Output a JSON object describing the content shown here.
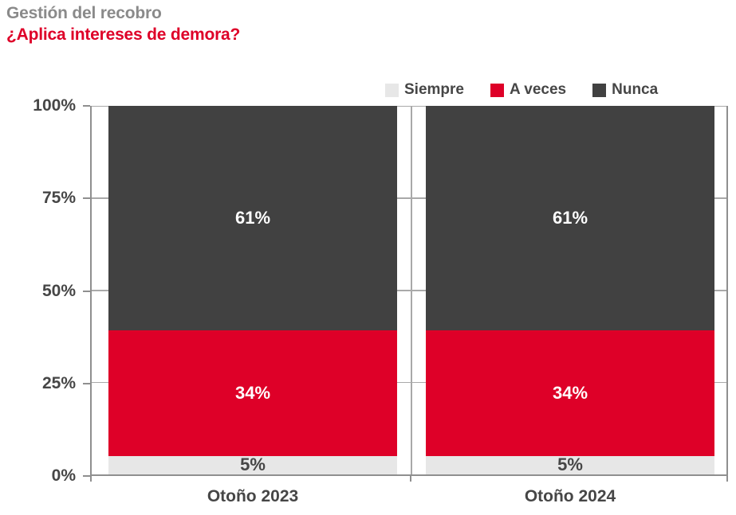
{
  "header": {
    "title": "Gestión del recobro",
    "subtitle": "¿Aplica intereses de demora?"
  },
  "colors": {
    "title_gray": "#8A8A8A",
    "accent_red": "#DE0028",
    "dark_gray": "#414141",
    "light_gray": "#E7E7E7",
    "label_text": "#464646",
    "axis": "#8F8F8F",
    "grid": "#A9A9A9"
  },
  "chart_data": {
    "type": "bar",
    "stacked": true,
    "title": "Gestión del recobro",
    "subtitle": "¿Aplica intereses de demora?",
    "categories": [
      "Otoño 2023",
      "Otoño 2024"
    ],
    "series": [
      {
        "name": "Siempre",
        "values": [
          5,
          5
        ],
        "display_labels": [
          "5%",
          "5%"
        ],
        "color": "#E7E7E7",
        "label_color": "#464646"
      },
      {
        "name": "A veces",
        "values": [
          34,
          34
        ],
        "display_labels": [
          "34%",
          "34%"
        ],
        "color": "#DE0028",
        "label_color": "#FFFFFF"
      },
      {
        "name": "Nunca",
        "values": [
          61,
          61
        ],
        "display_labels": [
          "61%",
          "61%"
        ],
        "color": "#414141",
        "label_color": "#FFFFFF"
      }
    ],
    "ylim": [
      0,
      100
    ],
    "yticks": [
      0,
      25,
      50,
      75,
      100
    ],
    "ytick_labels": [
      "0%",
      "25%",
      "50%",
      "75%",
      "100%"
    ],
    "grid": true,
    "legend_position": "top-right"
  }
}
